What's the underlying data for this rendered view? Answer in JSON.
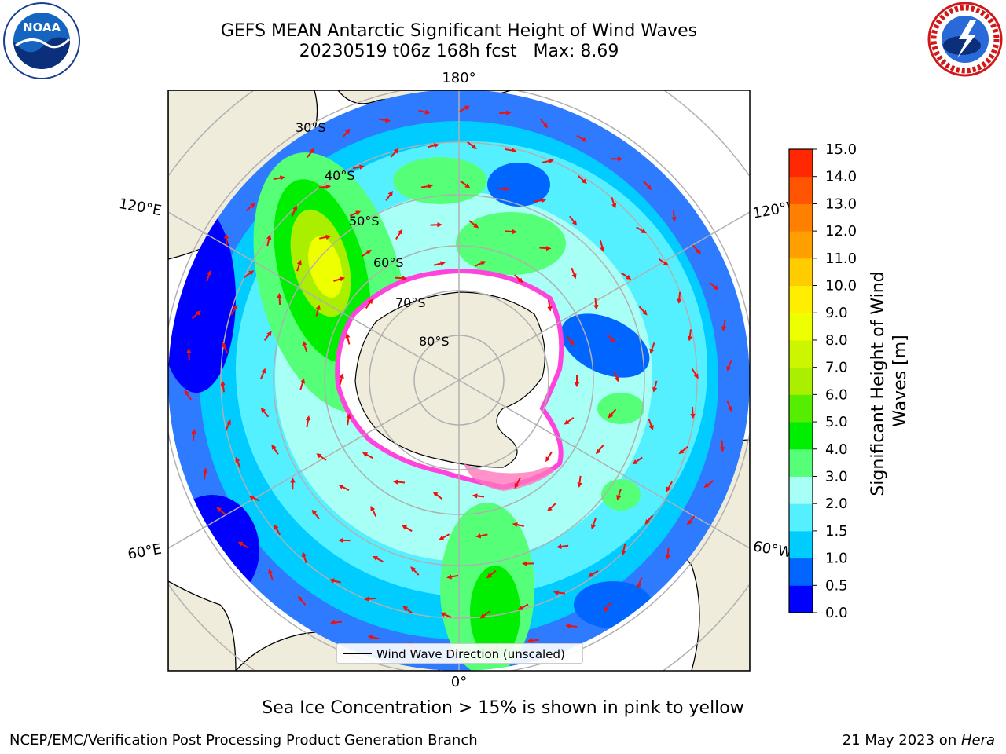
{
  "title": {
    "line1": "GEFS MEAN Antarctic Significant Height of Wind Waves",
    "line2": "20230519 t06z 168h fcst   Max: 8.69"
  },
  "map": {
    "projection": "south-polar-stereographic",
    "longitude_labels": {
      "top": "180°",
      "bottom": "0°",
      "upper_left": "120°E",
      "upper_right": "120°W",
      "lower_left": "60°E",
      "lower_right": "60°W"
    },
    "latitude_labels": [
      "30°S",
      "40°S",
      "50°S",
      "60°S",
      "70°S",
      "80°S"
    ]
  },
  "colorbar": {
    "label": "Significant Height of Wind Waves [m]",
    "ticks": [
      "0.0",
      "0.5",
      "1.0",
      "1.5",
      "2.0",
      "3.0",
      "4.0",
      "5.0",
      "6.0",
      "7.0",
      "8.0",
      "9.0",
      "10.0",
      "11.0",
      "12.0",
      "13.0",
      "14.0",
      "15.0"
    ],
    "colors": [
      "#0000ff",
      "#0066ff",
      "#00ccff",
      "#55f0ff",
      "#a8fff5",
      "#55ff77",
      "#00ee00",
      "#55ee00",
      "#aaee00",
      "#ccf500",
      "#eeff00",
      "#ffee00",
      "#ffcc00",
      "#ffa000",
      "#ff8000",
      "#ff5500",
      "#ff2800"
    ]
  },
  "legend": {
    "entry": "Wind Wave Direction (unscaled)"
  },
  "note": "Sea Ice Concentration > 15% is shown in pink to yellow",
  "footer": {
    "left": "NCEP/EMC/Verification Post Processing Product Generation Branch",
    "right_prefix": "21 May 2023 on ",
    "right_italic": "Hera"
  },
  "logos": {
    "noaa": {
      "text": "NOAA",
      "ring_text": "NATIONAL OCEANIC AND ATMOSPHERIC ADMINISTRATION · U.S. DEPARTMENT OF COMMERCE"
    },
    "nws": {
      "ring_text": "NATIONAL WEATHER SERVICE"
    }
  }
}
